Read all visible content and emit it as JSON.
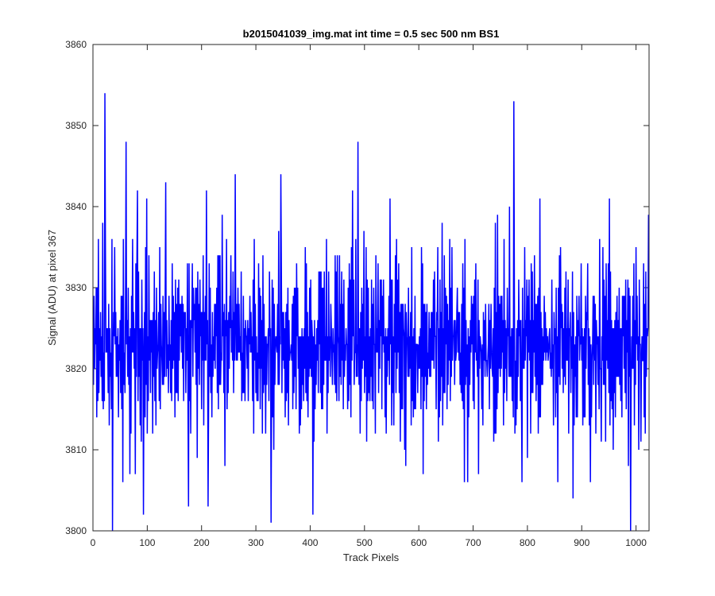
{
  "chart_data": {
    "type": "line",
    "title": "b2015041039_img.mat int time = 0.5 sec  500 nm BS1",
    "xlabel": "Track Pixels",
    "ylabel": "Signal (ADU) at pixel 367",
    "xlim": [
      0,
      1024
    ],
    "ylim": [
      3800,
      3860
    ],
    "xticks": [
      0,
      100,
      200,
      300,
      400,
      500,
      600,
      700,
      800,
      900,
      1000
    ],
    "yticks": [
      3800,
      3810,
      3820,
      3830,
      3840,
      3850,
      3860
    ],
    "grid": false,
    "line_color": "#0000ff",
    "series": [
      {
        "x_start": 1,
        "x_step": 1,
        "peaks": [
          {
            "x": 22,
            "y": 3854
          },
          {
            "x": 36,
            "y": 3800
          },
          {
            "x": 61,
            "y": 3848
          },
          {
            "x": 82,
            "y": 3842
          },
          {
            "x": 93,
            "y": 3802
          },
          {
            "x": 134,
            "y": 3843
          },
          {
            "x": 176,
            "y": 3803
          },
          {
            "x": 212,
            "y": 3803
          },
          {
            "x": 262,
            "y": 3844
          },
          {
            "x": 328,
            "y": 3801
          },
          {
            "x": 346,
            "y": 3844
          },
          {
            "x": 405,
            "y": 3802
          },
          {
            "x": 488,
            "y": 3848
          },
          {
            "x": 775,
            "y": 3853
          },
          {
            "x": 790,
            "y": 3806
          },
          {
            "x": 990,
            "y": 3800
          },
          {
            "x": 1023,
            "y": 3839
          }
        ]
      }
    ]
  }
}
